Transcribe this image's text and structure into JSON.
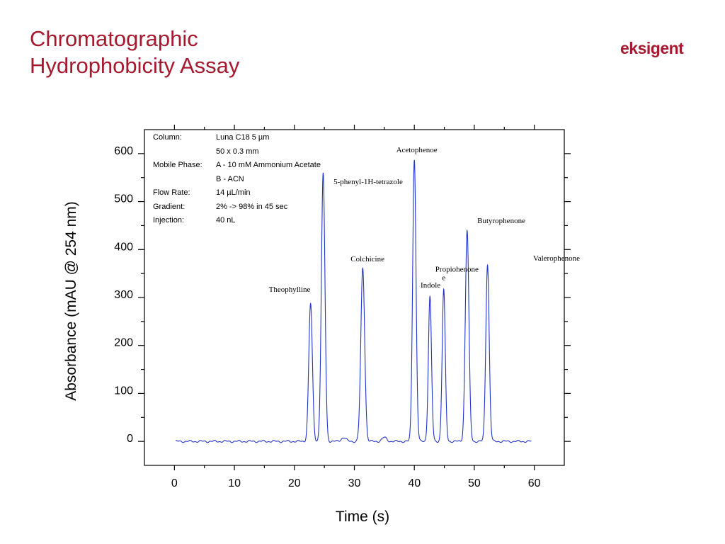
{
  "slide": {
    "title_line1": "Chromatographic",
    "title_line2": "Hydrophobicity Assay",
    "logo_text": "eksigent"
  },
  "colors": {
    "title": "#a6192e",
    "trace": "#2233cc",
    "axis": "#000000"
  },
  "conditions": [
    {
      "label": "Column:",
      "value": "Luna C18  5 µm"
    },
    {
      "label": "",
      "value": "50 x 0.3 mm"
    },
    {
      "label": "Mobile Phase:",
      "value": "A - 10 mM Ammonium Acetate"
    },
    {
      "label": "",
      "value": "B - ACN"
    },
    {
      "label": "Flow Rate:",
      "value": "14 µL/min"
    },
    {
      "label": "Gradient:",
      "value": "2% -> 98% in 45 sec"
    },
    {
      "label": "Injection:",
      "value": "40 nL"
    }
  ],
  "chart_data": {
    "type": "line",
    "xlabel": "Time (s)",
    "ylabel": "Absorbance (mAU @ 254 nm)",
    "xlim": [
      -5,
      65
    ],
    "ylim": [
      -50,
      650
    ],
    "xticks": [
      0,
      10,
      20,
      30,
      40,
      50,
      60
    ],
    "yticks": [
      0,
      100,
      200,
      300,
      400,
      500,
      600
    ],
    "grid": false,
    "trace_range": [
      0.2,
      59.5
    ],
    "baseline": 0,
    "peaks": [
      {
        "name": "Theophylline",
        "x": 22.7,
        "y": 287,
        "width": 0.3
      },
      {
        "name": "5-phenyl-1H-tetrazole",
        "x": 24.8,
        "y": 558,
        "width": 0.3
      },
      {
        "name": "",
        "x": 28.2,
        "y": 8,
        "width": 0.4
      },
      {
        "name": "Colchicine",
        "x": 31.4,
        "y": 361,
        "width": 0.32
      },
      {
        "name": "",
        "x": 35.0,
        "y": 8,
        "width": 0.4
      },
      {
        "name": "Acetophenoe",
        "x": 40.0,
        "y": 588,
        "width": 0.28
      },
      {
        "name": "Indole",
        "x": 42.6,
        "y": 301,
        "width": 0.26
      },
      {
        "name": "Propiohenone",
        "x": 44.9,
        "y": 316,
        "width": 0.26
      },
      {
        "name": "Butyrophenone",
        "x": 48.8,
        "y": 440,
        "width": 0.3
      },
      {
        "name": "Valerophenone",
        "x": 52.2,
        "y": 369,
        "width": 0.28
      }
    ],
    "annotations": [
      {
        "text": "Theophylline",
        "x": 19.2,
        "y": 312
      },
      {
        "text": "5-phenyl-1H-tetrazole",
        "x": 32.3,
        "y": 536
      },
      {
        "text": "Colchicine",
        "x": 32.2,
        "y": 375
      },
      {
        "text": "Acetophenoe",
        "x": 40.4,
        "y": 603
      },
      {
        "text": "Indole",
        "x": 42.7,
        "y": 321
      },
      {
        "text": "Propiohenone",
        "x": 47.1,
        "y": 354
      },
      {
        "text": "e",
        "x": 44.9,
        "y": 336
      },
      {
        "text": "Butyrophenone",
        "x": 54.5,
        "y": 455
      },
      {
        "text": "Valerophenone",
        "x": 63.7,
        "y": 377
      }
    ]
  }
}
